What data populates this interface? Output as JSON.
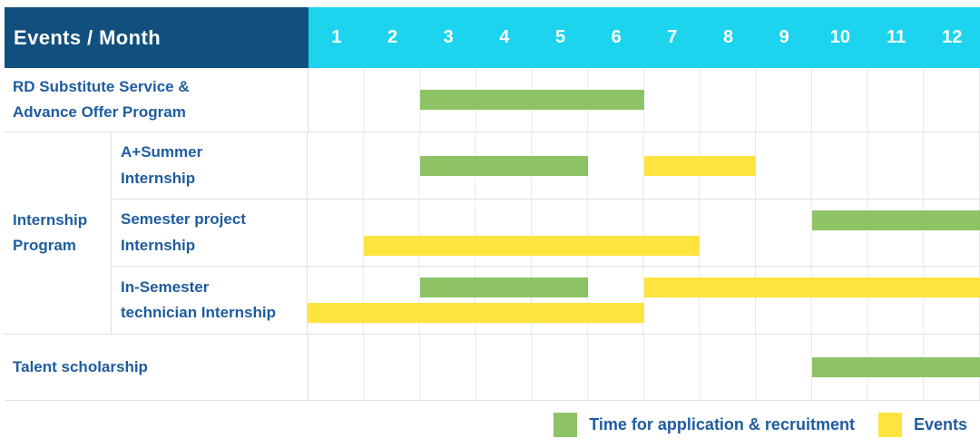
{
  "header": {
    "title": "Events / Month",
    "months": [
      "1",
      "2",
      "3",
      "4",
      "5",
      "6",
      "7",
      "8",
      "9",
      "10",
      "11",
      "12"
    ]
  },
  "colors": {
    "navy": "#11507E",
    "cyan": "#1CD4EE",
    "green": "#8DC365",
    "yellow": "#FFE43F",
    "textblue": "#1E5C9F",
    "hline": "#E0E0E0",
    "vline": "#E8E8E8"
  },
  "chart_data": {
    "type": "gantt",
    "x_axis": "month",
    "x_range": [
      1,
      12
    ],
    "bar_color_meaning": {
      "green": "Time for application & recruitment",
      "yellow": "Events"
    },
    "rows": [
      {
        "kind": "simple",
        "label_lines": [
          "RD Substitute Service &",
          "Advance Offer Program"
        ],
        "bar_lines": [
          [
            {
              "color": "green",
              "start": 3,
              "end": 6
            }
          ]
        ]
      },
      {
        "kind": "group",
        "label_lines": [
          "Internship",
          "Program"
        ],
        "subrows": [
          {
            "label_lines": [
              "A+Summer",
              "Internship"
            ],
            "bar_lines": [
              [
                {
                  "color": "green",
                  "start": 3,
                  "end": 5
                },
                {
                  "color": "yellow",
                  "start": 7,
                  "end": 8
                }
              ]
            ]
          },
          {
            "label_lines": [
              "Semester project",
              "Internship"
            ],
            "bar_lines": [
              [
                {
                  "color": "green",
                  "start": 10,
                  "end": 12
                }
              ],
              [
                {
                  "color": "yellow",
                  "start": 2,
                  "end": 7
                }
              ]
            ]
          },
          {
            "label_lines": [
              "In-Semester",
              "technician Internship"
            ],
            "bar_lines": [
              [
                {
                  "color": "green",
                  "start": 3,
                  "end": 5
                },
                {
                  "color": "yellow",
                  "start": 7,
                  "end": 12
                }
              ],
              [
                {
                  "color": "yellow",
                  "start": 1,
                  "end": 6
                }
              ]
            ]
          }
        ]
      },
      {
        "kind": "simple",
        "label_lines": [
          "Talent scholarship"
        ],
        "bar_lines": [
          [
            {
              "color": "green",
              "start": 10,
              "end": 12
            }
          ]
        ]
      }
    ]
  },
  "legend": [
    {
      "color": "green",
      "label": "Time for application & recruitment"
    },
    {
      "color": "yellow",
      "label": "Events"
    }
  ]
}
